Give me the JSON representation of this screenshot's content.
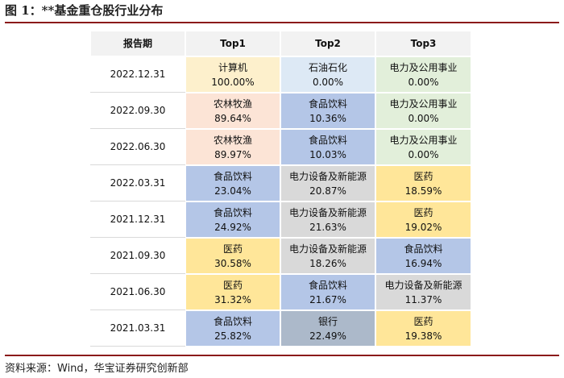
{
  "header": {
    "title": "图 1：**基金重仓股行业分布"
  },
  "table": {
    "columns": [
      "报告期",
      "Top1",
      "Top2",
      "Top3"
    ],
    "rows": [
      {
        "date": "2022.12.31",
        "cells": [
          {
            "name": "计算机",
            "value": "100.00%",
            "color": "#fdf0cc"
          },
          {
            "name": "石油石化",
            "value": "0.00%",
            "color": "#dde9f5"
          },
          {
            "name": "电力及公用事业",
            "value": "0.00%",
            "color": "#e2efda"
          }
        ]
      },
      {
        "date": "2022.09.30",
        "cells": [
          {
            "name": "农林牧渔",
            "value": "89.64%",
            "color": "#fce4d6"
          },
          {
            "name": "食品饮料",
            "value": "10.36%",
            "color": "#b4c6e7"
          },
          {
            "name": "电力及公用事业",
            "value": "0.00%",
            "color": "#e2efda"
          }
        ]
      },
      {
        "date": "2022.06.30",
        "cells": [
          {
            "name": "农林牧渔",
            "value": "89.97%",
            "color": "#fce4d6"
          },
          {
            "name": "食品饮料",
            "value": "10.03%",
            "color": "#b4c6e7"
          },
          {
            "name": "电力及公用事业",
            "value": "0.00%",
            "color": "#e2efda"
          }
        ]
      },
      {
        "date": "2022.03.31",
        "cells": [
          {
            "name": "食品饮料",
            "value": "23.04%",
            "color": "#b4c6e7"
          },
          {
            "name": "电力设备及新能源",
            "value": "20.87%",
            "color": "#d9d9d9"
          },
          {
            "name": "医药",
            "value": "18.59%",
            "color": "#ffe699"
          }
        ]
      },
      {
        "date": "2021.12.31",
        "cells": [
          {
            "name": "食品饮料",
            "value": "24.92%",
            "color": "#b4c6e7"
          },
          {
            "name": "电力设备及新能源",
            "value": "21.63%",
            "color": "#d9d9d9"
          },
          {
            "name": "医药",
            "value": "19.02%",
            "color": "#ffe699"
          }
        ]
      },
      {
        "date": "2021.09.30",
        "cells": [
          {
            "name": "医药",
            "value": "30.58%",
            "color": "#ffe699"
          },
          {
            "name": "电力设备及新能源",
            "value": "18.26%",
            "color": "#d9d9d9"
          },
          {
            "name": "食品饮料",
            "value": "16.94%",
            "color": "#b4c6e7"
          }
        ]
      },
      {
        "date": "2021.06.30",
        "cells": [
          {
            "name": "医药",
            "value": "31.32%",
            "color": "#ffe699"
          },
          {
            "name": "食品饮料",
            "value": "21.67%",
            "color": "#b4c6e7"
          },
          {
            "name": "电力设备及新能源",
            "value": "11.37%",
            "color": "#d9d9d9"
          }
        ]
      },
      {
        "date": "2021.03.31",
        "cells": [
          {
            "name": "食品饮料",
            "value": "25.82%",
            "color": "#b4c6e7"
          },
          {
            "name": "银行",
            "value": "22.49%",
            "color": "#acb9ca"
          },
          {
            "name": "医药",
            "value": "19.38%",
            "color": "#ffe699"
          }
        ]
      }
    ]
  },
  "footer": {
    "source": "资料来源：Wind，华宝证券研究创新部"
  }
}
